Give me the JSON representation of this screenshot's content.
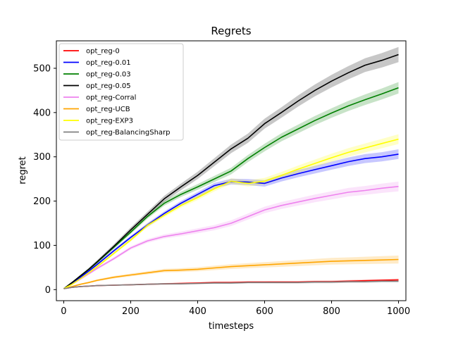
{
  "chart_data": {
    "type": "line",
    "title": "Regrets",
    "xlabel": "timesteps",
    "ylabel": "regret",
    "xlim": [
      -22,
      1022
    ],
    "ylim": [
      -25,
      562
    ],
    "xticks": [
      0,
      200,
      400,
      600,
      800,
      1000
    ],
    "yticks": [
      0,
      100,
      200,
      300,
      400,
      500
    ],
    "grid": false,
    "legend_position": "top-left",
    "x": [
      0,
      25,
      50,
      75,
      100,
      150,
      200,
      250,
      300,
      350,
      400,
      450,
      500,
      550,
      600,
      650,
      700,
      750,
      800,
      850,
      900,
      950,
      1000
    ],
    "series": [
      {
        "name": "opt_reg-0",
        "color": "#ff0000",
        "values": [
          2,
          5,
          7,
          8,
          9,
          10,
          11,
          12,
          13,
          14,
          15,
          16,
          16,
          17,
          17,
          17,
          17,
          18,
          18,
          19,
          20,
          21,
          22
        ],
        "band": 2
      },
      {
        "name": "opt_reg-0.01",
        "color": "#0000ff",
        "values": [
          2,
          14,
          28,
          42,
          57,
          88,
          118,
          146,
          172,
          195,
          215,
          235,
          244,
          243,
          240,
          252,
          262,
          271,
          280,
          289,
          296,
          300,
          306
        ],
        "band": 10
      },
      {
        "name": "opt_reg-0.03",
        "color": "#008000",
        "values": [
          2,
          16,
          31,
          46,
          62,
          96,
          130,
          165,
          195,
          215,
          232,
          250,
          268,
          296,
          321,
          344,
          363,
          382,
          399,
          415,
          429,
          442,
          456
        ],
        "band": 12
      },
      {
        "name": "opt_reg-0.05",
        "color": "#000000",
        "values": [
          2,
          16,
          31,
          46,
          63,
          98,
          135,
          170,
          205,
          232,
          258,
          288,
          318,
          342,
          375,
          400,
          426,
          450,
          471,
          490,
          507,
          518,
          531
        ],
        "band": 16
      },
      {
        "name": "opt_reg-Corral",
        "color": "#ee82ee",
        "values": [
          2,
          12,
          24,
          36,
          48,
          70,
          94,
          110,
          120,
          126,
          133,
          140,
          150,
          165,
          180,
          190,
          198,
          206,
          213,
          220,
          224,
          229,
          233
        ],
        "band": 10
      },
      {
        "name": "opt_reg-UCB",
        "color": "#ffa500",
        "values": [
          2,
          7,
          12,
          16,
          21,
          28,
          33,
          38,
          43,
          44,
          46,
          49,
          52,
          54,
          56,
          58,
          60,
          62,
          64,
          65,
          66,
          67,
          68
        ],
        "band": 8
      },
      {
        "name": "opt_reg-EXP3",
        "color": "#ffff00",
        "values": [
          2,
          12,
          25,
          38,
          52,
          82,
          112,
          145,
          168,
          190,
          208,
          228,
          245,
          240,
          245,
          258,
          272,
          285,
          298,
          310,
          320,
          330,
          340
        ],
        "band": 10
      },
      {
        "name": "opt_reg-BalancingSharp",
        "color": "#808080",
        "values": [
          2,
          5,
          7,
          8,
          9,
          10,
          11,
          12,
          13,
          13,
          14,
          15,
          15,
          16,
          16,
          16,
          16,
          17,
          17,
          18,
          18,
          19,
          19
        ],
        "band": 2
      }
    ]
  }
}
